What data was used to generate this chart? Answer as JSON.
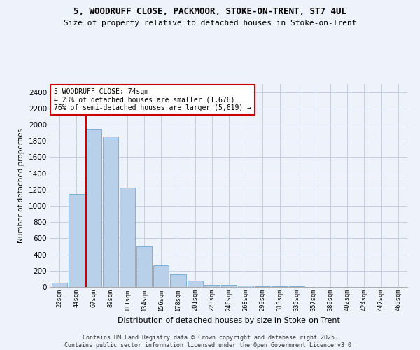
{
  "title_line1": "5, WOODRUFF CLOSE, PACKMOOR, STOKE-ON-TRENT, ST7 4UL",
  "title_line2": "Size of property relative to detached houses in Stoke-on-Trent",
  "xlabel": "Distribution of detached houses by size in Stoke-on-Trent",
  "ylabel": "Number of detached properties",
  "categories": [
    "22sqm",
    "44sqm",
    "67sqm",
    "89sqm",
    "111sqm",
    "134sqm",
    "156sqm",
    "178sqm",
    "201sqm",
    "223sqm",
    "246sqm",
    "268sqm",
    "290sqm",
    "313sqm",
    "335sqm",
    "357sqm",
    "380sqm",
    "402sqm",
    "424sqm",
    "447sqm",
    "469sqm"
  ],
  "values": [
    50,
    1150,
    1950,
    1850,
    1220,
    500,
    270,
    155,
    75,
    28,
    28,
    18,
    12,
    8,
    5,
    4,
    3,
    2,
    1,
    1,
    0
  ],
  "bar_color": "#b8d0ea",
  "bar_edge_color": "#6fa8d4",
  "redline_index": 2,
  "annotation_text": "5 WOODRUFF CLOSE: 74sqm\n← 23% of detached houses are smaller (1,676)\n76% of semi-detached houses are larger (5,619) →",
  "annotation_box_facecolor": "#ffffff",
  "annotation_box_edgecolor": "#cc0000",
  "ylim": [
    0,
    2500
  ],
  "yticks": [
    0,
    200,
    400,
    600,
    800,
    1000,
    1200,
    1400,
    1600,
    1800,
    2000,
    2200,
    2400
  ],
  "background_color": "#eef2fb",
  "grid_color": "#c5cedf",
  "footnote1": "Contains HM Land Registry data © Crown copyright and database right 2025.",
  "footnote2": "Contains public sector information licensed under the Open Government Licence v3.0."
}
